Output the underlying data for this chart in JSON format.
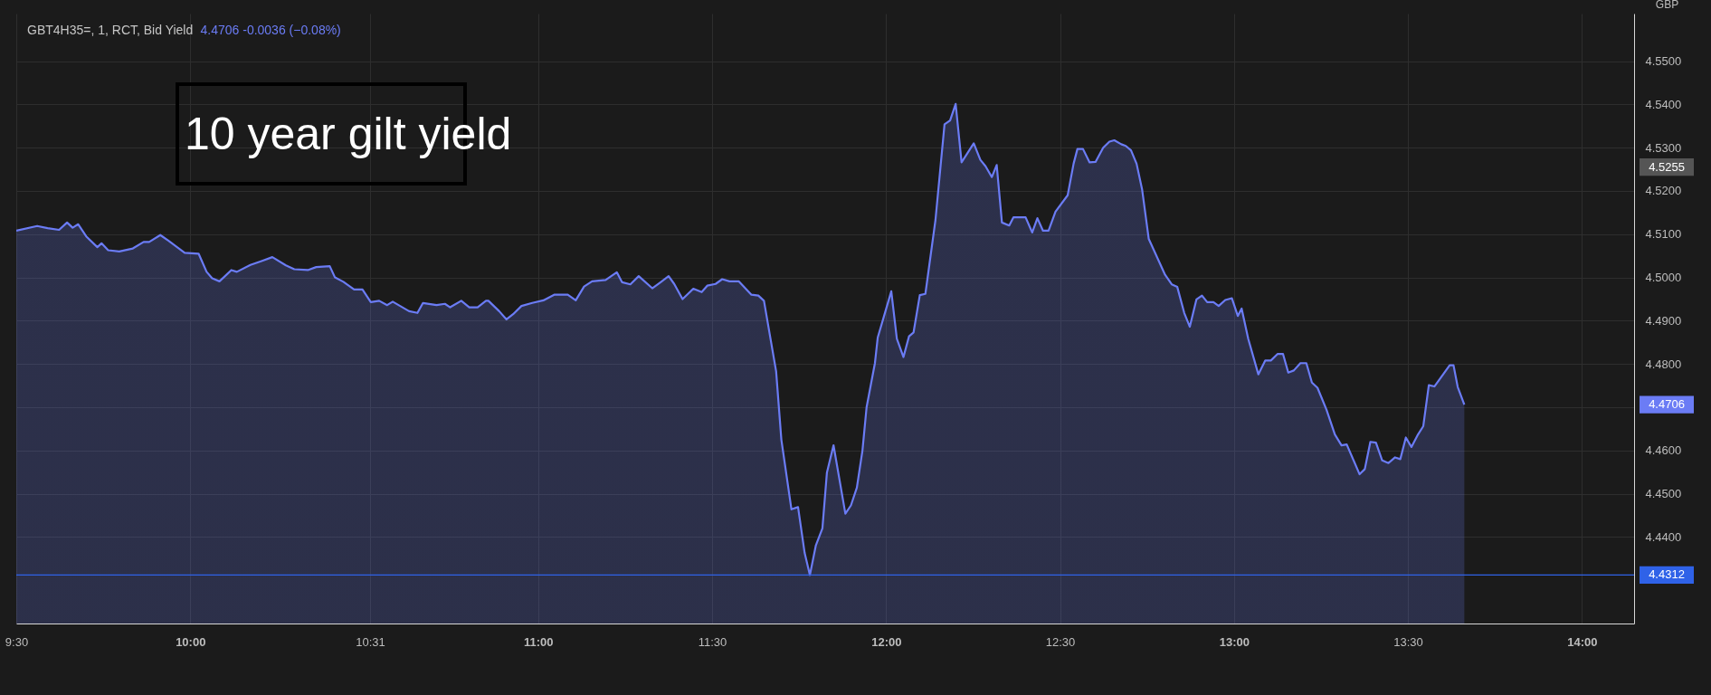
{
  "chart_data": {
    "type": "area",
    "title": "10 year gilt yield",
    "ylabel": "GBP",
    "annotations": [
      "GBT4H35=, 1, RCT, Bid Yield",
      "4.4706  -0.0036 (−0.08%)",
      "4.4706",
      "4.5255"
    ],
    "x": [
      9.5,
      9.56,
      9.59,
      9.623,
      9.646,
      9.662,
      9.678,
      9.701,
      9.733,
      9.745,
      9.764,
      9.796,
      9.835,
      9.866,
      9.882,
      9.914,
      9.937,
      9.984,
      10.024,
      10.047,
      10.063,
      10.084,
      10.118,
      10.134,
      10.173,
      10.205,
      10.236,
      10.275,
      10.299,
      10.338,
      10.362,
      10.401,
      10.416,
      10.44,
      10.471,
      10.495,
      10.519,
      10.543,
      10.566,
      10.582,
      10.629,
      10.653,
      10.669,
      10.708,
      10.732,
      10.747,
      10.779,
      10.802,
      10.826,
      10.85,
      10.857,
      10.888,
      10.909,
      10.928,
      10.952,
      10.983,
      11.015,
      11.046,
      11.085,
      11.108,
      11.132,
      11.155,
      11.194,
      11.226,
      11.241,
      11.265,
      11.289,
      11.328,
      11.352,
      11.375,
      11.391,
      11.415,
      11.446,
      11.47,
      11.486,
      11.51,
      11.529,
      11.55,
      11.577,
      11.613,
      11.633,
      11.649,
      11.684,
      11.699,
      11.728,
      11.747,
      11.766,
      11.781,
      11.798,
      11.817,
      11.83,
      11.849,
      11.883,
      11.899,
      11.916,
      11.932,
      11.944,
      11.968,
      11.976,
      11.999,
      12.015,
      12.031,
      12.05,
      12.066,
      12.079,
      12.097,
      12.113,
      12.142,
      12.168,
      12.184,
      12.2,
      12.217,
      12.252,
      12.271,
      12.286,
      12.304,
      12.318,
      12.333,
      12.354,
      12.366,
      12.401,
      12.42,
      12.435,
      12.451,
      12.467,
      12.487,
      12.522,
      12.539,
      12.55,
      12.566,
      12.585,
      12.602,
      12.624,
      12.642,
      12.656,
      12.676,
      12.689,
      12.704,
      12.72,
      12.736,
      12.755,
      12.802,
      12.821,
      12.837,
      12.857,
      12.873,
      12.892,
      12.908,
      12.923,
      12.941,
      12.956,
      12.975,
      12.994,
      13.011,
      13.022,
      13.041,
      13.07,
      13.09,
      13.106,
      13.125,
      13.141,
      13.156,
      13.172,
      13.191,
      13.208,
      13.224,
      13.24,
      13.266,
      13.29,
      13.309,
      13.324,
      13.361,
      13.376,
      13.392,
      13.408,
      13.426,
      13.444,
      13.463,
      13.478,
      13.494,
      13.51,
      13.529,
      13.544,
      13.56,
      13.576,
      13.62,
      13.631,
      13.643,
      13.662
    ],
    "series": [
      {
        "color": "#6b7cf5",
        "values": [
          4.5108,
          4.5119,
          4.5114,
          4.511,
          4.5127,
          4.5115,
          4.5123,
          4.5095,
          4.507,
          4.5079,
          4.5063,
          4.506,
          4.5067,
          4.5082,
          4.5082,
          4.5098,
          4.5085,
          4.5057,
          4.5055,
          4.5013,
          4.4998,
          4.4991,
          4.5017,
          4.5013,
          4.5029,
          4.5038,
          4.5047,
          4.5028,
          4.5019,
          4.5017,
          4.5024,
          4.5026,
          4.5,
          4.499,
          4.4972,
          4.4972,
          4.4943,
          4.4946,
          4.4936,
          4.4944,
          4.4922,
          4.4918,
          4.4941,
          4.4936,
          4.4939,
          4.4931,
          4.4946,
          4.4931,
          4.4931,
          4.4946,
          4.4946,
          4.4922,
          4.4903,
          4.4915,
          4.4934,
          4.4941,
          4.4947,
          4.496,
          4.496,
          4.4947,
          4.4979,
          4.4991,
          4.4994,
          4.5012,
          4.4989,
          4.4984,
          4.5003,
          4.4975,
          4.4989,
          4.5003,
          4.4985,
          4.495,
          4.4974,
          4.4966,
          4.4981,
          4.4985,
          4.4996,
          4.4991,
          4.4991,
          4.496,
          4.4958,
          4.4946,
          4.4783,
          4.4625,
          4.4464,
          4.4469,
          4.4363,
          4.4312,
          4.438,
          4.442,
          4.4549,
          4.4612,
          4.4454,
          4.4473,
          4.4514,
          4.4599,
          4.47,
          4.4802,
          4.4861,
          4.4924,
          4.4968,
          4.4858,
          4.4816,
          4.4864,
          4.4873,
          4.4959,
          4.4962,
          4.5133,
          4.5354,
          4.5363,
          4.5401,
          4.5266,
          4.531,
          4.5272,
          4.5257,
          4.5232,
          4.526,
          4.5127,
          4.512,
          4.5139,
          4.5139,
          4.5104,
          4.5137,
          4.5108,
          4.5108,
          4.5152,
          4.519,
          4.5263,
          4.5297,
          4.5297,
          4.5266,
          4.5267,
          4.53,
          4.5314,
          4.5317,
          4.5308,
          4.5304,
          4.5294,
          4.5263,
          4.5203,
          4.5089,
          4.5006,
          4.4984,
          4.4978,
          4.4918,
          4.4886,
          4.4949,
          4.4958,
          4.4943,
          4.4943,
          4.4934,
          4.4948,
          4.4952,
          4.4911,
          4.4928,
          4.4858,
          4.4776,
          4.4808,
          4.4808,
          4.4823,
          4.4823,
          4.478,
          4.4785,
          4.4802,
          4.4802,
          4.4757,
          4.4745,
          4.4694,
          4.4637,
          4.4612,
          4.4614,
          4.4545,
          4.4557,
          4.462,
          4.4618,
          4.4577,
          4.4571,
          4.4584,
          4.458,
          4.463,
          4.4608,
          4.4637,
          4.4656,
          4.4751,
          4.4748,
          4.4797,
          4.4797,
          4.4747,
          4.4706
        ]
      }
    ],
    "xlim": [
      9.5,
      14.15
    ],
    "xticks": [
      {
        "value": 9.5,
        "label": "9:30"
      },
      {
        "value": 10,
        "label": "10:00"
      },
      {
        "value": 10.517,
        "label": "10:31"
      },
      {
        "value": 11,
        "label": "11:00"
      },
      {
        "value": 11.5,
        "label": "11:30"
      },
      {
        "value": 12,
        "label": "12:00"
      },
      {
        "value": 12.5,
        "label": "12:30"
      },
      {
        "value": 13,
        "label": "13:00"
      },
      {
        "value": 13.5,
        "label": "13:30"
      },
      {
        "value": 14,
        "label": "14:00"
      }
    ],
    "ylim": [
      4.42,
      4.561
    ],
    "yticks": [
      {
        "value": 4.44,
        "label": "4.4400"
      },
      {
        "value": 4.45,
        "label": "4.4500"
      },
      {
        "value": 4.46,
        "label": "4.4600"
      },
      {
        "value": 4.47,
        "label": null
      },
      {
        "value": 4.48,
        "label": "4.4800"
      },
      {
        "value": 4.49,
        "label": "4.4900"
      },
      {
        "value": 4.5,
        "label": "4.5000"
      },
      {
        "value": 4.51,
        "label": "4.5100"
      },
      {
        "value": 4.52,
        "label": "4.5200"
      },
      {
        "value": 4.53,
        "label": "4.5300"
      },
      {
        "value": 4.54,
        "label": "4.5400"
      },
      {
        "value": 4.55,
        "label": "4.5500"
      }
    ],
    "ref_lines": [
      {
        "axis": "y",
        "value": 4.4312,
        "label": "4.4312",
        "color": "#2f62e8"
      }
    ],
    "grid": true
  }
}
